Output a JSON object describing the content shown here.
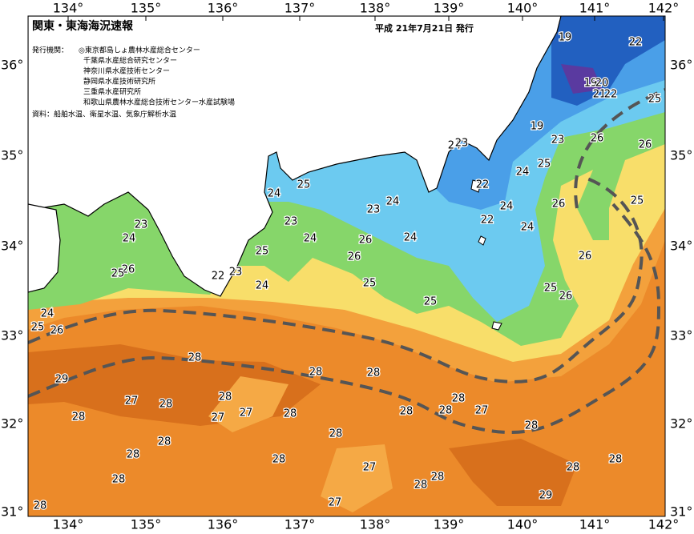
{
  "header": {
    "title": "関東・東海海況速報",
    "issued": "平成 21年7月21日 発行",
    "publisher_label": "発行機関：",
    "publishers": [
      "◎東京都島しょ農林水産総合センター",
      "千葉県水産総合研究センター",
      "神奈川県水産技術センター",
      "静岡県水産技術研究所",
      "三重県水産研究所",
      "和歌山県農林水産総合技術センター水産試験場"
    ],
    "source": "資料：船舶水温、衛星水温、気象庁解析水温"
  },
  "axes": {
    "longitudes": [
      "134°",
      "135°",
      "136°",
      "137°",
      "138°",
      "139°",
      "140°",
      "141°",
      "142°"
    ],
    "latitudes": [
      "36°",
      "35°",
      "34°",
      "33°",
      "32°",
      "31°"
    ]
  },
  "contour_labels": [
    19,
    22,
    19,
    20,
    21,
    22,
    25,
    19,
    23,
    26,
    26,
    24,
    23,
    25,
    24,
    22,
    25,
    24,
    24,
    23,
    24,
    22,
    24,
    26,
    25,
    23,
    23,
    24,
    24,
    24,
    26,
    26,
    25,
    26,
    26,
    25,
    22,
    23,
    24,
    25,
    25,
    26,
    25,
    24,
    25,
    26,
    28,
    29,
    28,
    28,
    28,
    28,
    27,
    28,
    27,
    28,
    28,
    28,
    27,
    27,
    28,
    28,
    28,
    28,
    28,
    28,
    27,
    28,
    28,
    28,
    28,
    28,
    29,
    27,
    28
  ]
}
